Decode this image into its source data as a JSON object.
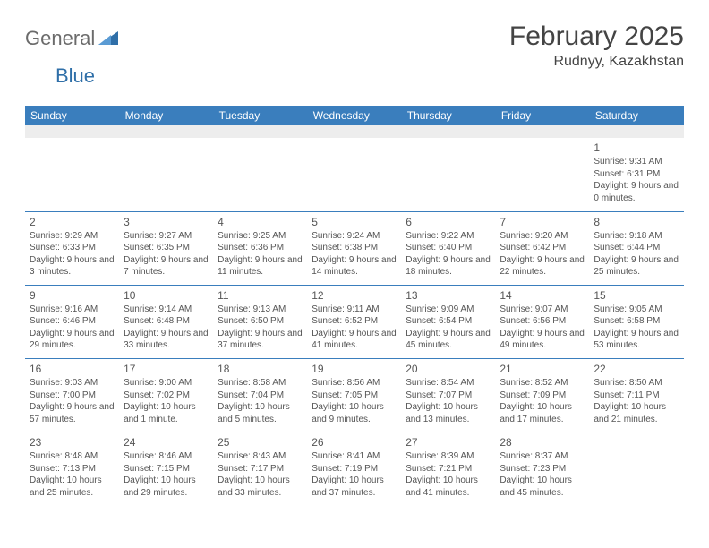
{
  "logo": {
    "part1": "General",
    "part2": "Blue"
  },
  "title": "February 2025",
  "location": "Rudnyy, Kazakhstan",
  "header_bg": "#3a7ebd",
  "header_fg": "#ffffff",
  "border_color": "#3a7ebd",
  "weekdays": [
    "Sunday",
    "Monday",
    "Tuesday",
    "Wednesday",
    "Thursday",
    "Friday",
    "Saturday"
  ],
  "weeks": [
    [
      null,
      null,
      null,
      null,
      null,
      null,
      {
        "d": "1",
        "sr": "9:31 AM",
        "ss": "6:31 PM",
        "dl": "9 hours and 0 minutes."
      }
    ],
    [
      {
        "d": "2",
        "sr": "9:29 AM",
        "ss": "6:33 PM",
        "dl": "9 hours and 3 minutes."
      },
      {
        "d": "3",
        "sr": "9:27 AM",
        "ss": "6:35 PM",
        "dl": "9 hours and 7 minutes."
      },
      {
        "d": "4",
        "sr": "9:25 AM",
        "ss": "6:36 PM",
        "dl": "9 hours and 11 minutes."
      },
      {
        "d": "5",
        "sr": "9:24 AM",
        "ss": "6:38 PM",
        "dl": "9 hours and 14 minutes."
      },
      {
        "d": "6",
        "sr": "9:22 AM",
        "ss": "6:40 PM",
        "dl": "9 hours and 18 minutes."
      },
      {
        "d": "7",
        "sr": "9:20 AM",
        "ss": "6:42 PM",
        "dl": "9 hours and 22 minutes."
      },
      {
        "d": "8",
        "sr": "9:18 AM",
        "ss": "6:44 PM",
        "dl": "9 hours and 25 minutes."
      }
    ],
    [
      {
        "d": "9",
        "sr": "9:16 AM",
        "ss": "6:46 PM",
        "dl": "9 hours and 29 minutes."
      },
      {
        "d": "10",
        "sr": "9:14 AM",
        "ss": "6:48 PM",
        "dl": "9 hours and 33 minutes."
      },
      {
        "d": "11",
        "sr": "9:13 AM",
        "ss": "6:50 PM",
        "dl": "9 hours and 37 minutes."
      },
      {
        "d": "12",
        "sr": "9:11 AM",
        "ss": "6:52 PM",
        "dl": "9 hours and 41 minutes."
      },
      {
        "d": "13",
        "sr": "9:09 AM",
        "ss": "6:54 PM",
        "dl": "9 hours and 45 minutes."
      },
      {
        "d": "14",
        "sr": "9:07 AM",
        "ss": "6:56 PM",
        "dl": "9 hours and 49 minutes."
      },
      {
        "d": "15",
        "sr": "9:05 AM",
        "ss": "6:58 PM",
        "dl": "9 hours and 53 minutes."
      }
    ],
    [
      {
        "d": "16",
        "sr": "9:03 AM",
        "ss": "7:00 PM",
        "dl": "9 hours and 57 minutes."
      },
      {
        "d": "17",
        "sr": "9:00 AM",
        "ss": "7:02 PM",
        "dl": "10 hours and 1 minute."
      },
      {
        "d": "18",
        "sr": "8:58 AM",
        "ss": "7:04 PM",
        "dl": "10 hours and 5 minutes."
      },
      {
        "d": "19",
        "sr": "8:56 AM",
        "ss": "7:05 PM",
        "dl": "10 hours and 9 minutes."
      },
      {
        "d": "20",
        "sr": "8:54 AM",
        "ss": "7:07 PM",
        "dl": "10 hours and 13 minutes."
      },
      {
        "d": "21",
        "sr": "8:52 AM",
        "ss": "7:09 PM",
        "dl": "10 hours and 17 minutes."
      },
      {
        "d": "22",
        "sr": "8:50 AM",
        "ss": "7:11 PM",
        "dl": "10 hours and 21 minutes."
      }
    ],
    [
      {
        "d": "23",
        "sr": "8:48 AM",
        "ss": "7:13 PM",
        "dl": "10 hours and 25 minutes."
      },
      {
        "d": "24",
        "sr": "8:46 AM",
        "ss": "7:15 PM",
        "dl": "10 hours and 29 minutes."
      },
      {
        "d": "25",
        "sr": "8:43 AM",
        "ss": "7:17 PM",
        "dl": "10 hours and 33 minutes."
      },
      {
        "d": "26",
        "sr": "8:41 AM",
        "ss": "7:19 PM",
        "dl": "10 hours and 37 minutes."
      },
      {
        "d": "27",
        "sr": "8:39 AM",
        "ss": "7:21 PM",
        "dl": "10 hours and 41 minutes."
      },
      {
        "d": "28",
        "sr": "8:37 AM",
        "ss": "7:23 PM",
        "dl": "10 hours and 45 minutes."
      },
      null
    ]
  ],
  "labels": {
    "sunrise": "Sunrise: ",
    "sunset": "Sunset: ",
    "daylight": "Daylight: "
  }
}
